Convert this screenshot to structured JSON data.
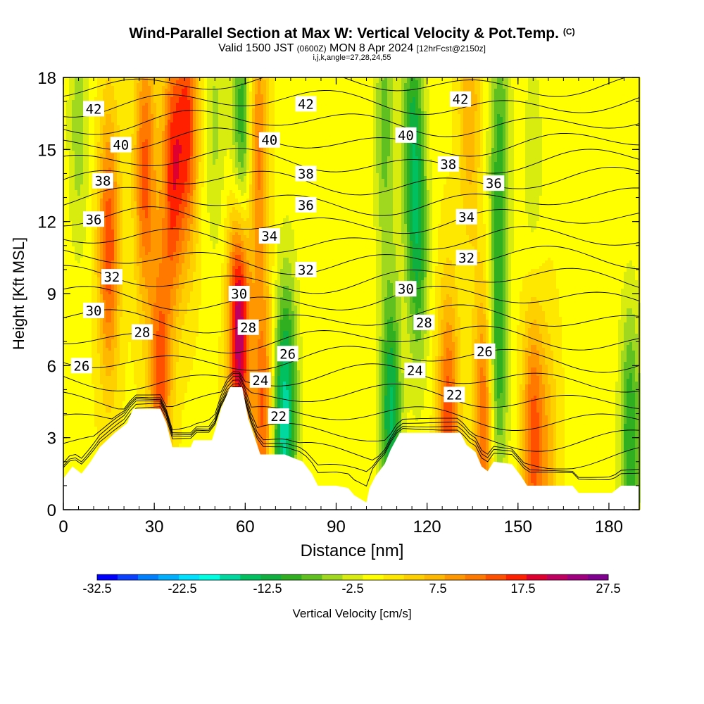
{
  "title": {
    "main": "Wind-Parallel Section at Max W: Vertical Velocity & Pot.Temp.",
    "copyright": "(C)",
    "valid_main": "Valid 1500 JST",
    "valid_utc": "(0600Z)",
    "valid_date": "MON 8 Apr 2024",
    "forecast": "[12hrFcst@2150z]",
    "indices": "i,j,k,angle=27,28,24,55"
  },
  "chart_data": {
    "type": "heatmap",
    "xlabel": "Distance [nm]",
    "ylabel": "Height [Kft MSL]",
    "xlim": [
      0,
      190
    ],
    "ylim": [
      0,
      18
    ],
    "x_ticks": [
      0,
      30,
      60,
      90,
      120,
      150,
      180
    ],
    "y_ticks": [
      0,
      3,
      6,
      9,
      12,
      15,
      18
    ],
    "colorbar": {
      "title": "Vertical Velocity [cm/s]",
      "min": -32.5,
      "max": 27.5,
      "step": 2.5,
      "tick_labels": [
        "-32.5",
        "-22.5",
        "-12.5",
        "-2.5",
        "7.5",
        "17.5",
        "27.5"
      ],
      "colors": [
        "#0000ff",
        "#0a40ff",
        "#0080ff",
        "#00b0ff",
        "#00e0ff",
        "#00ffe0",
        "#00d8a0",
        "#00c060",
        "#10b040",
        "#30b020",
        "#60c020",
        "#a0d820",
        "#d8ec10",
        "#ffff00",
        "#ffe800",
        "#ffd000",
        "#ffb800",
        "#ff9800",
        "#ff7800",
        "#ff5000",
        "#ff2000",
        "#e00030",
        "#c00060",
        "#a00080",
        "#800090"
      ]
    },
    "background_velocity": 2.0,
    "velocity_features": [
      {
        "x": 15,
        "y": 11,
        "v": 17
      },
      {
        "x": 27,
        "y": 14,
        "v": 16
      },
      {
        "x": 36,
        "y": 14,
        "v": 18
      },
      {
        "x": 41,
        "y": 16,
        "v": 17
      },
      {
        "x": 58,
        "y": 8,
        "v": 27
      },
      {
        "x": 59,
        "y": 15,
        "v": -13
      },
      {
        "x": 64,
        "y": 15,
        "v": 14
      },
      {
        "x": 5,
        "y": 16,
        "v": -4
      },
      {
        "x": 32,
        "y": 5.5,
        "v": 16
      },
      {
        "x": 74,
        "y": 4.5,
        "v": -11
      },
      {
        "x": 71,
        "y": 2.5,
        "v": -8
      },
      {
        "x": 66,
        "y": 4,
        "v": 16
      },
      {
        "x": 50,
        "y": 16,
        "v": -3
      },
      {
        "x": 108,
        "y": 4,
        "v": -13
      },
      {
        "x": 106,
        "y": 16,
        "v": -6
      },
      {
        "x": 115,
        "y": 16,
        "v": -8
      },
      {
        "x": 117,
        "y": 11,
        "v": -9
      },
      {
        "x": 127,
        "y": 3.5,
        "v": 17
      },
      {
        "x": 139,
        "y": 4,
        "v": 17
      },
      {
        "x": 143,
        "y": 6,
        "v": -11
      },
      {
        "x": 144,
        "y": 15,
        "v": -8
      },
      {
        "x": 155,
        "y": 3,
        "v": 16
      },
      {
        "x": 160,
        "y": 2,
        "v": 8
      },
      {
        "x": 187,
        "y": 3,
        "v": -10
      },
      {
        "x": 134,
        "y": 17,
        "v": 10
      },
      {
        "x": 155,
        "y": 14,
        "v": -2
      }
    ],
    "terrain_kft": [
      [
        0,
        1.3
      ],
      [
        3,
        1.8
      ],
      [
        6,
        1.5
      ],
      [
        9,
        2.0
      ],
      [
        12,
        2.6
      ],
      [
        17,
        3.2
      ],
      [
        21,
        3.6
      ],
      [
        23,
        4.2
      ],
      [
        32,
        4.2
      ],
      [
        34,
        3.6
      ],
      [
        36,
        2.6
      ],
      [
        42,
        2.6
      ],
      [
        43,
        2.9
      ],
      [
        49,
        2.9
      ],
      [
        50,
        3.3
      ],
      [
        52,
        4.2
      ],
      [
        55,
        5.1
      ],
      [
        59,
        5.1
      ],
      [
        61,
        3.8
      ],
      [
        65,
        2.3
      ],
      [
        73,
        2.3
      ],
      [
        79,
        2.0
      ],
      [
        82,
        1.5
      ],
      [
        84,
        1.0
      ],
      [
        90,
        1.0
      ],
      [
        94,
        0.9
      ],
      [
        96,
        0.6
      ],
      [
        100,
        0.3
      ],
      [
        101,
        0.9
      ],
      [
        103,
        1.4
      ],
      [
        106,
        1.9
      ],
      [
        108,
        2.5
      ],
      [
        111,
        3.2
      ],
      [
        120,
        3.2
      ],
      [
        131,
        3.2
      ],
      [
        133,
        2.7
      ],
      [
        136,
        2.4
      ],
      [
        138,
        1.8
      ],
      [
        140,
        1.6
      ],
      [
        142,
        2.0
      ],
      [
        148,
        1.9
      ],
      [
        151,
        1.4
      ],
      [
        153,
        1.0
      ],
      [
        168,
        1.0
      ],
      [
        170,
        0.7
      ],
      [
        177,
        0.7
      ],
      [
        181,
        0.7
      ],
      [
        184,
        1.0
      ],
      [
        190,
        1.0
      ]
    ],
    "isotherm_levels": [
      22,
      23,
      24,
      25,
      26,
      27,
      28,
      29,
      30,
      31,
      32,
      33,
      34,
      35,
      36,
      37,
      38,
      39,
      40,
      41,
      42,
      43
    ],
    "isotherm_labels": [
      {
        "text": "42",
        "x": 10,
        "y": 16.7
      },
      {
        "text": "40",
        "x": 19,
        "y": 15.2
      },
      {
        "text": "38",
        "x": 13,
        "y": 13.7
      },
      {
        "text": "36",
        "x": 10,
        "y": 12.1
      },
      {
        "text": "32",
        "x": 16,
        "y": 9.7
      },
      {
        "text": "30",
        "x": 10,
        "y": 8.3
      },
      {
        "text": "28",
        "x": 26,
        "y": 7.4
      },
      {
        "text": "26",
        "x": 6,
        "y": 6.0
      },
      {
        "text": "42",
        "x": 80,
        "y": 16.9
      },
      {
        "text": "40",
        "x": 68,
        "y": 15.4
      },
      {
        "text": "38",
        "x": 80,
        "y": 14.0
      },
      {
        "text": "36",
        "x": 80,
        "y": 12.7
      },
      {
        "text": "34",
        "x": 68,
        "y": 11.4
      },
      {
        "text": "32",
        "x": 80,
        "y": 10.0
      },
      {
        "text": "30",
        "x": 58,
        "y": 9.0
      },
      {
        "text": "28",
        "x": 61,
        "y": 7.6
      },
      {
        "text": "26",
        "x": 74,
        "y": 6.5
      },
      {
        "text": "24",
        "x": 65,
        "y": 5.4
      },
      {
        "text": "22",
        "x": 71,
        "y": 3.9
      },
      {
        "text": "42",
        "x": 131,
        "y": 17.1
      },
      {
        "text": "40",
        "x": 113,
        "y": 15.6
      },
      {
        "text": "38",
        "x": 127,
        "y": 14.4
      },
      {
        "text": "36",
        "x": 142,
        "y": 13.6
      },
      {
        "text": "34",
        "x": 133,
        "y": 12.2
      },
      {
        "text": "32",
        "x": 133,
        "y": 10.5
      },
      {
        "text": "30",
        "x": 113,
        "y": 9.2
      },
      {
        "text": "28",
        "x": 119,
        "y": 7.8
      },
      {
        "text": "26",
        "x": 139,
        "y": 6.6
      },
      {
        "text": "24",
        "x": 116,
        "y": 5.8
      },
      {
        "text": "22",
        "x": 129,
        "y": 4.8
      }
    ]
  }
}
